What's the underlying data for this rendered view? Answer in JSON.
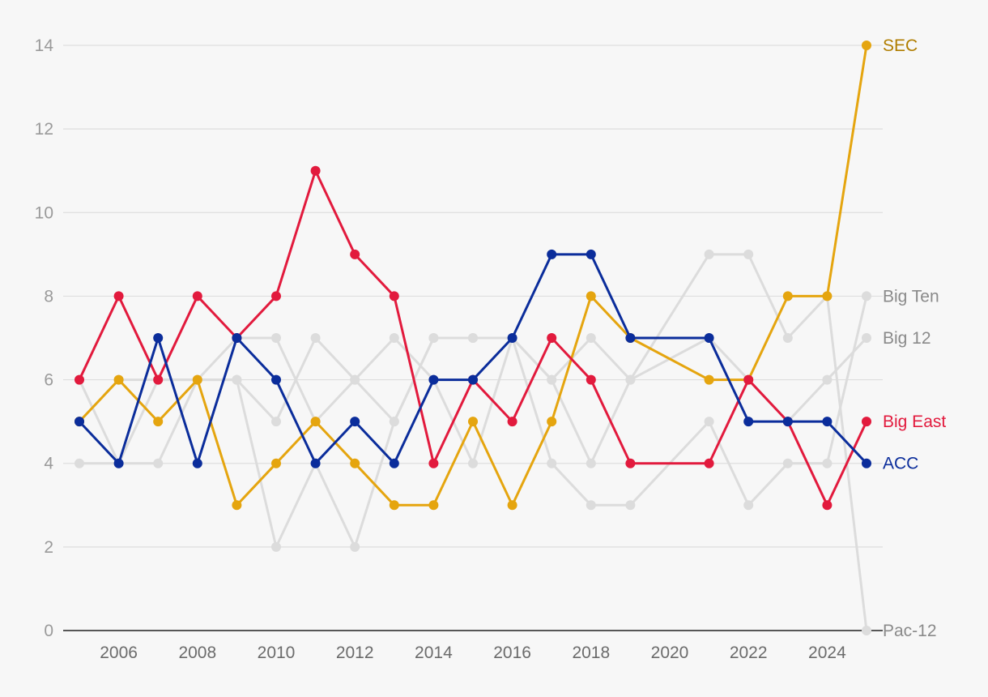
{
  "chart_data": {
    "type": "line",
    "x": [
      2005,
      2006,
      2007,
      2008,
      2009,
      2010,
      2011,
      2012,
      2013,
      2014,
      2015,
      2016,
      2017,
      2018,
      2019,
      2021,
      2022,
      2023,
      2024,
      2025
    ],
    "ylim": [
      0,
      14
    ],
    "xlim": [
      2005,
      2025
    ],
    "y_ticks": [
      0,
      2,
      4,
      6,
      8,
      10,
      12,
      14
    ],
    "x_ticks": [
      2006,
      2008,
      2010,
      2012,
      2014,
      2016,
      2018,
      2020,
      2022,
      2024
    ],
    "grid": "horizontal",
    "series": [
      {
        "name": "Big Ten",
        "color": "#dcdcdc",
        "label_color": "#8a8a8a",
        "highlight": false,
        "values": [
          4,
          4,
          4,
          6,
          6,
          2,
          4,
          2,
          5,
          7,
          7,
          7,
          4,
          3,
          3,
          5,
          3,
          4,
          4,
          8
        ]
      },
      {
        "name": "Big 12",
        "color": "#dcdcdc",
        "label_color": "#8a8a8a",
        "highlight": false,
        "values": [
          6,
          4,
          6,
          6,
          6,
          5,
          7,
          6,
          7,
          6,
          4,
          7,
          6,
          7,
          6,
          7,
          6,
          5,
          6,
          7
        ]
      },
      {
        "name": "Pac-12",
        "color": "#dcdcdc",
        "label_color": "#8a8a8a",
        "highlight": false,
        "values": [
          5,
          6,
          6,
          6,
          7,
          7,
          5,
          6,
          5,
          7,
          7,
          7,
          6,
          4,
          6,
          9,
          9,
          7,
          8,
          0
        ]
      },
      {
        "name": "SEC",
        "color": "#e5a50f",
        "label_color": "#b07d00",
        "highlight": true,
        "values": [
          5,
          6,
          5,
          6,
          3,
          4,
          5,
          4,
          3,
          3,
          5,
          3,
          5,
          8,
          7,
          6,
          6,
          8,
          8,
          14
        ]
      },
      {
        "name": "Big East",
        "color": "#e21a3d",
        "label_color": "#e21a3d",
        "highlight": true,
        "values": [
          6,
          8,
          6,
          8,
          7,
          8,
          11,
          9,
          8,
          4,
          6,
          5,
          7,
          6,
          4,
          4,
          6,
          5,
          3,
          5
        ]
      },
      {
        "name": "ACC",
        "color": "#0b2d9b",
        "label_color": "#0b2d9b",
        "highlight": true,
        "values": [
          5,
          4,
          7,
          4,
          7,
          6,
          4,
          5,
          4,
          6,
          6,
          7,
          9,
          9,
          7,
          7,
          5,
          5,
          5,
          4
        ]
      }
    ]
  }
}
